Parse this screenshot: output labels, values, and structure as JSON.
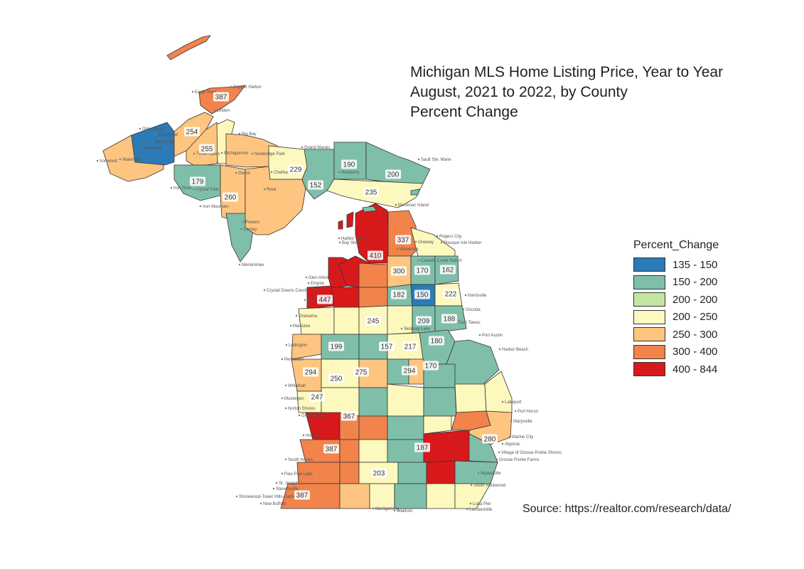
{
  "title": {
    "line1": "Michigan MLS Home Listing Price, Year to Year",
    "line2": "August, 2021 to 2022, by County",
    "line3": "Percent Change"
  },
  "legend": {
    "title": "Percent_Change",
    "items": [
      {
        "label": "135 - 150",
        "color": "#2c7bb6"
      },
      {
        "label": "150 - 200",
        "color": "#7fbfaa"
      },
      {
        "label": "200 - 200",
        "color": "#c2e6a0"
      },
      {
        "label": "200 - 250",
        "color": "#fdf8bd"
      },
      {
        "label": "250 - 300",
        "color": "#fdc57f"
      },
      {
        "label": "300 - 400",
        "color": "#f1834b"
      },
      {
        "label": "400 - 844",
        "color": "#d7191c"
      }
    ]
  },
  "source": "Source: https://realtor.com/research/data/",
  "county_labels": [
    {
      "value": "387",
      "color": "#f1834b"
    },
    {
      "value": "254",
      "color": "#fdc57f"
    },
    {
      "value": "255",
      "color": "#fdc57f"
    },
    {
      "value": "179",
      "color": "#7fbfaa"
    },
    {
      "value": "260",
      "color": "#fdc57f"
    },
    {
      "value": "229",
      "color": "#fdf8bd"
    },
    {
      "value": "190",
      "color": "#7fbfaa"
    },
    {
      "value": "200",
      "color": "#7fbfaa"
    },
    {
      "value": "152",
      "color": "#7fbfaa"
    },
    {
      "value": "235",
      "color": "#fdf8bd"
    },
    {
      "value": "337",
      "color": "#f1834b"
    },
    {
      "value": "410",
      "color": "#d7191c"
    },
    {
      "value": "300",
      "color": "#fdc57f"
    },
    {
      "value": "170",
      "color": "#7fbfaa"
    },
    {
      "value": "162",
      "color": "#7fbfaa"
    },
    {
      "value": "447",
      "color": "#d7191c"
    },
    {
      "value": "182",
      "color": "#7fbfaa"
    },
    {
      "value": "150",
      "color": "#2c7bb6"
    },
    {
      "value": "222",
      "color": "#fdf8bd"
    },
    {
      "value": "245",
      "color": "#fdf8bd"
    },
    {
      "value": "209",
      "color": "#fdf8bd"
    },
    {
      "value": "188",
      "color": "#7fbfaa"
    },
    {
      "value": "180",
      "color": "#7fbfaa"
    },
    {
      "value": "199",
      "color": "#7fbfaa"
    },
    {
      "value": "157",
      "color": "#7fbfaa"
    },
    {
      "value": "217",
      "color": "#fdf8bd"
    },
    {
      "value": "170",
      "color": "#7fbfaa"
    },
    {
      "value": "294",
      "color": "#fdc57f"
    },
    {
      "value": "250",
      "color": "#fdf8bd"
    },
    {
      "value": "275",
      "color": "#fdc57f"
    },
    {
      "value": "294",
      "color": "#fdc57f"
    },
    {
      "value": "247",
      "color": "#fdf8bd"
    },
    {
      "value": "367",
      "color": "#f1834b"
    },
    {
      "value": "280",
      "color": "#fdc57f"
    },
    {
      "value": "387",
      "color": "#f1834b"
    },
    {
      "value": "187",
      "color": "#7fbfaa"
    },
    {
      "value": "203",
      "color": "#fdf8bd"
    },
    {
      "value": "387",
      "color": "#f1834b"
    }
  ],
  "place_labels": [
    "Copper Harbor",
    "Eagle River",
    "Linden",
    "Ontonagon",
    "Greenland",
    "Mass City",
    "Bergland",
    "Ironwood",
    "Wakefield",
    "Three Lakes",
    "Michigamme",
    "Big Bay",
    "Newbridge Park",
    "Grand Marais",
    "Chatham",
    "Newberry",
    "Sault Ste. Marie",
    "Iron River",
    "Crystal Falls",
    "Gwinn",
    "Iron Mountain",
    "Rock",
    "Powers",
    "Carney",
    "Menominee",
    "Mackinac Island",
    "Harbor Springs",
    "Bay Shore",
    "Rogers City",
    "Presque Isle Harbor",
    "Onaway",
    "Wolverine",
    "Canada Creek Ranch",
    "Glen Arbor",
    "Empire",
    "Crystal Downs Country Club",
    "Frankfort",
    "Onekama",
    "Manistee",
    "Harrisville",
    "Oscoda",
    "East Tawas",
    "Skidway Lake",
    "Port Austin",
    "Harbor Beach",
    "Ludington",
    "Pentwater",
    "Whitehall",
    "Muskegon",
    "Norton Shores",
    "Grand Haven",
    "Holland",
    "South Haven",
    "Paw Paw Lake",
    "St. Joseph",
    "Stevensville",
    "New Buffalo",
    "Shorewood-Tower Hills-Harbert",
    "Lakeport",
    "Port Huron",
    "Marysville",
    "Marine City",
    "Algonac",
    "Village of Grosse Pointe Shores",
    "Grosse Pointe Farms",
    "Wyandotte",
    "South Rockwood",
    "Lambertville",
    "Luna Pier",
    "Waldron",
    "Montgomery"
  ]
}
